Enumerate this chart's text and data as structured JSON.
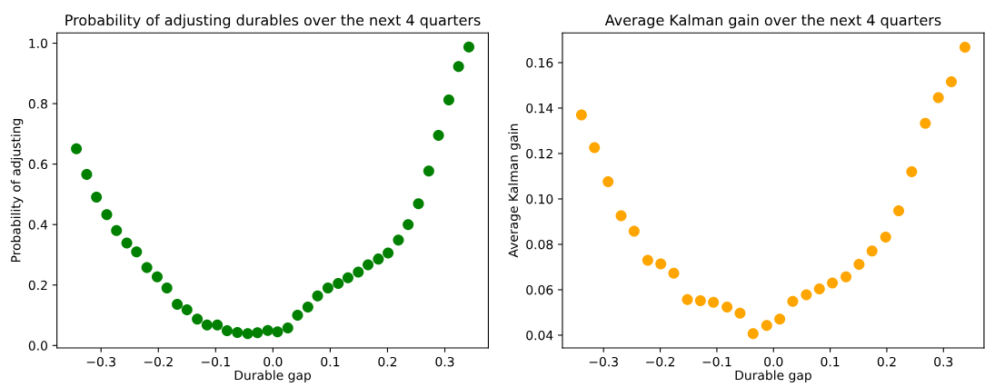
{
  "chart_data": [
    {
      "type": "scatter",
      "title": "Probability of adjusting durables over the next 4 quarters",
      "xlabel": "Durable gap",
      "ylabel": "Probability of adjusting",
      "x": [
        -0.343,
        -0.325,
        -0.308,
        -0.29,
        -0.273,
        -0.255,
        -0.238,
        -0.22,
        -0.202,
        -0.185,
        -0.167,
        -0.15,
        -0.132,
        -0.115,
        -0.097,
        -0.08,
        -0.062,
        -0.044,
        -0.027,
        -0.009,
        0.008,
        0.026,
        0.043,
        0.061,
        0.078,
        0.096,
        0.114,
        0.131,
        0.149,
        0.166,
        0.184,
        0.201,
        0.219,
        0.236,
        0.254,
        0.272,
        0.289,
        0.307,
        0.324,
        0.342
      ],
      "series": [
        {
          "color": "#008000",
          "values": [
            0.651,
            0.566,
            0.491,
            0.433,
            0.38,
            0.339,
            0.31,
            0.258,
            0.227,
            0.19,
            0.136,
            0.118,
            0.087,
            0.068,
            0.068,
            0.049,
            0.043,
            0.039,
            0.042,
            0.05,
            0.045,
            0.058,
            0.1,
            0.127,
            0.164,
            0.19,
            0.205,
            0.224,
            0.243,
            0.267,
            0.286,
            0.306,
            0.349,
            0.4,
            0.469,
            0.577,
            0.695,
            0.812,
            0.923,
            0.987
          ]
        }
      ],
      "xlim": [
        -0.377,
        0.376
      ],
      "ylim": [
        -0.008,
        1.034
      ],
      "xticks": [
        {
          "value": -0.3,
          "label": "−0.3"
        },
        {
          "value": -0.2,
          "label": "−0.2"
        },
        {
          "value": -0.1,
          "label": "−0.1"
        },
        {
          "value": 0,
          "label": "0.0"
        },
        0.1,
        0.2,
        0.3
      ],
      "yticks": [
        {
          "value": 0,
          "label": "0.0"
        },
        0.2,
        0.4,
        0.6,
        0.8,
        {
          "value": 1,
          "label": "1.0"
        }
      ],
      "marker": "circle"
    },
    {
      "type": "scatter",
      "title": "Average Kalman gain over the next 4 quarters",
      "xlabel": "Durable gap",
      "ylabel": "Average Kalman gain",
      "x": [
        -0.339,
        -0.316,
        -0.292,
        -0.269,
        -0.246,
        -0.222,
        -0.199,
        -0.176,
        -0.152,
        -0.129,
        -0.106,
        -0.082,
        -0.059,
        -0.036,
        -0.012,
        0.011,
        0.034,
        0.058,
        0.081,
        0.104,
        0.128,
        0.151,
        0.174,
        0.198,
        0.221,
        0.244,
        0.268,
        0.291,
        0.314,
        0.338
      ],
      "series": [
        {
          "color": "#ffa500",
          "values": [
            0.137,
            0.1226,
            0.1076,
            0.0926,
            0.0858,
            0.073,
            0.0714,
            0.0673,
            0.0557,
            0.0552,
            0.0545,
            0.0524,
            0.0497,
            0.0407,
            0.0443,
            0.0471,
            0.0549,
            0.0578,
            0.0604,
            0.063,
            0.0657,
            0.0712,
            0.0771,
            0.0832,
            0.0948,
            0.112,
            0.1333,
            0.1446,
            0.1516,
            0.1668
          ]
        }
      ],
      "xlim": [
        -0.3726,
        0.3716
      ],
      "ylim": [
        0.0344,
        0.1731
      ],
      "xticks": [
        {
          "value": -0.3,
          "label": "−0.3"
        },
        {
          "value": -0.2,
          "label": "−0.2"
        },
        {
          "value": -0.1,
          "label": "−0.1"
        },
        {
          "value": 0,
          "label": "0.0"
        },
        0.1,
        0.2,
        0.3
      ],
      "yticks": [
        0.04,
        0.06,
        0.08,
        {
          "value": 0.1,
          "label": "0.10"
        },
        0.12,
        0.14,
        0.16
      ],
      "marker": "circle"
    }
  ]
}
